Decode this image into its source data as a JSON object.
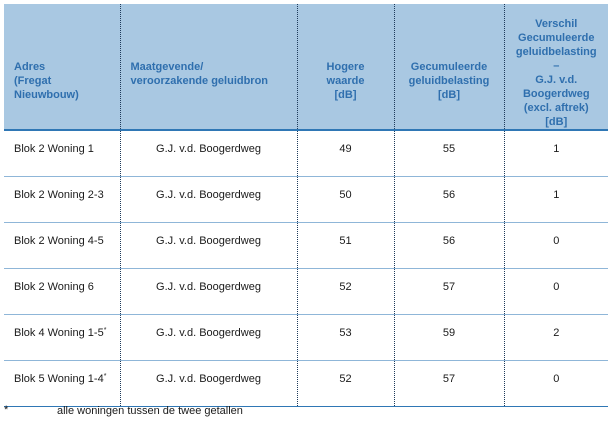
{
  "headers": {
    "adres": [
      "Adres",
      "(Fregat",
      "Nieuwbouw)"
    ],
    "bron": [
      "Maatgevende/",
      "veroorzakende geluidbron"
    ],
    "hogere": [
      "Hogere",
      "waarde",
      "[dB]"
    ],
    "gecumuleerde": [
      "Gecumuleerde",
      "geluidbelasting",
      "[dB]"
    ],
    "verschil": [
      "Verschil",
      "Gecumuleerde",
      "geluidbelasting",
      "–",
      "G.J. v.d.",
      "Boogerdweg",
      "(excl. aftrek)",
      "[dB]"
    ]
  },
  "rows": [
    {
      "adres": "Blok 2 Woning 1",
      "sup": "",
      "bron": "G.J. v.d. Boogerdweg",
      "hogere": "49",
      "gecumuleerde": "55",
      "verschil": "1"
    },
    {
      "adres": "Blok 2 Woning 2-3",
      "sup": "",
      "bron": "G.J. v.d. Boogerdweg",
      "hogere": "50",
      "gecumuleerde": "56",
      "verschil": "1"
    },
    {
      "adres": "Blok 2 Woning 4-5",
      "sup": "",
      "bron": "G.J. v.d. Boogerdweg",
      "hogere": "51",
      "gecumuleerde": "56",
      "verschil": "0"
    },
    {
      "adres": "Blok 2 Woning 6",
      "sup": "",
      "bron": "G.J. v.d. Boogerdweg",
      "hogere": "52",
      "gecumuleerde": "57",
      "verschil": "0"
    },
    {
      "adres": "Blok 4 Woning 1-5",
      "sup": "*",
      "bron": "G.J. v.d. Boogerdweg",
      "hogere": "53",
      "gecumuleerde": "59",
      "verschil": "2"
    },
    {
      "adres": "Blok 5 Woning 1-4",
      "sup": "*",
      "bron": "G.J. v.d. Boogerdweg",
      "hogere": "52",
      "gecumuleerde": "57",
      "verschil": "0"
    }
  ],
  "footnote": {
    "mark": "*",
    "text": "alle woningen tussen de twee getallen"
  }
}
